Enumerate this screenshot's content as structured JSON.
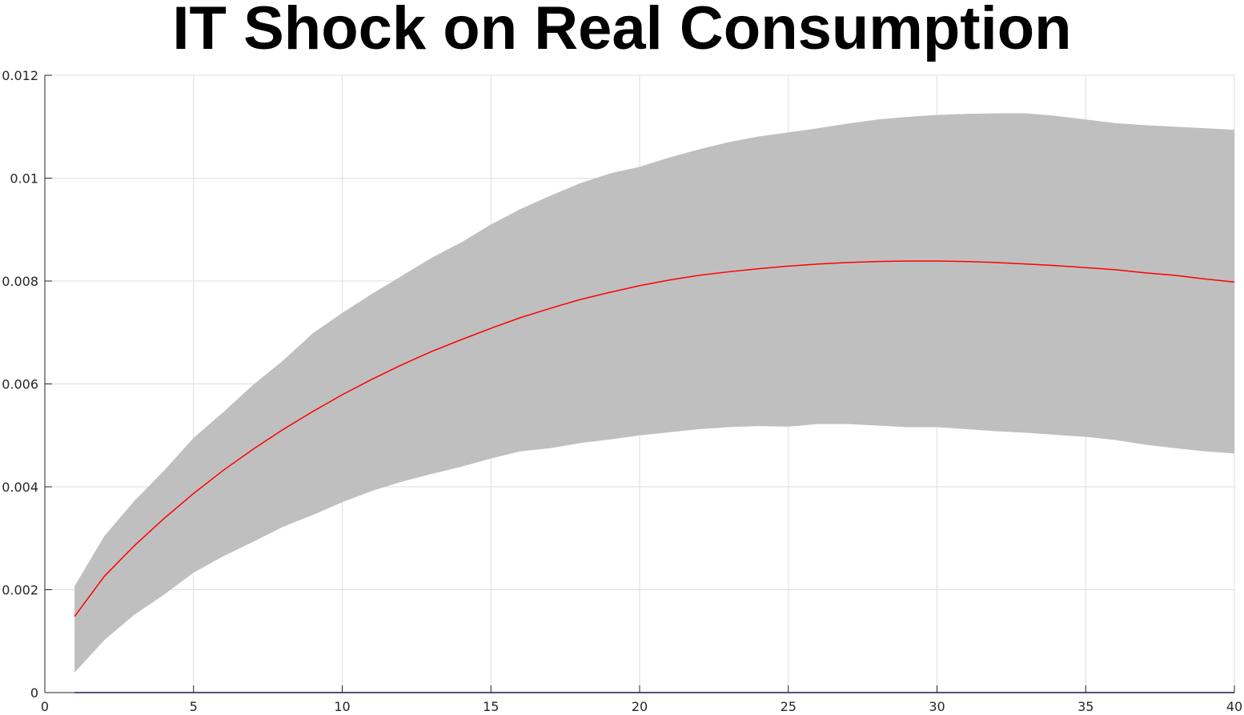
{
  "chart_data": {
    "type": "area",
    "title": "IT Shock on Real Consumption",
    "xlabel": "",
    "ylabel": "",
    "xlim": [
      0,
      40
    ],
    "ylim": [
      0,
      0.012
    ],
    "grid": true,
    "xticks": [
      0,
      5,
      10,
      15,
      20,
      25,
      30,
      35,
      40
    ],
    "yticks": [
      0,
      0.002,
      0.004,
      0.006,
      0.008,
      0.01,
      0.012
    ],
    "xtick_labels": [
      "0",
      "5",
      "10",
      "15",
      "20",
      "25",
      "30",
      "35",
      "40"
    ],
    "ytick_labels": [
      "0",
      "0.002",
      "0.004",
      "0.006",
      "0.008",
      "0.01",
      "0.012"
    ],
    "x": [
      1,
      2,
      3,
      4,
      5,
      6,
      7,
      8,
      9,
      10,
      11,
      12,
      13,
      14,
      15,
      16,
      17,
      18,
      19,
      20,
      21,
      22,
      23,
      24,
      25,
      26,
      27,
      28,
      29,
      30,
      31,
      32,
      33,
      34,
      35,
      36,
      37,
      38,
      39,
      40
    ],
    "band_upper": [
      0.00207,
      0.00304,
      0.00372,
      0.00431,
      0.00495,
      0.00545,
      0.00598,
      0.00645,
      0.00698,
      0.00738,
      0.00775,
      0.0081,
      0.00845,
      0.00875,
      0.0091,
      0.0094,
      0.00966,
      0.0099,
      0.01009,
      0.01022,
      0.0104,
      0.01056,
      0.0107,
      0.01081,
      0.01089,
      0.01097,
      0.01106,
      0.01114,
      0.01119,
      0.01123,
      0.01125,
      0.01126,
      0.01126,
      0.01121,
      0.01114,
      0.01107,
      0.01103,
      0.011,
      0.01097,
      0.01094
    ],
    "band_lower": [
      0.00039,
      0.00102,
      0.00151,
      0.0019,
      0.00233,
      0.00265,
      0.00293,
      0.00322,
      0.00345,
      0.0037,
      0.00392,
      0.0041,
      0.00425,
      0.00439,
      0.00455,
      0.00469,
      0.00475,
      0.00485,
      0.00492,
      0.005,
      0.00506,
      0.00512,
      0.00516,
      0.00518,
      0.00517,
      0.00522,
      0.00522,
      0.00519,
      0.00516,
      0.00516,
      0.00512,
      0.00508,
      0.00505,
      0.00501,
      0.00497,
      0.00491,
      0.00482,
      0.00475,
      0.00469,
      0.00465
    ],
    "median": [
      0.00148,
      0.00226,
      0.00285,
      0.00338,
      0.00387,
      0.00432,
      0.00473,
      0.00511,
      0.00546,
      0.00579,
      0.00609,
      0.00637,
      0.00663,
      0.00686,
      0.00708,
      0.00729,
      0.00747,
      0.00764,
      0.00778,
      0.00791,
      0.00802,
      0.00811,
      0.00818,
      0.00824,
      0.00829,
      0.00833,
      0.00836,
      0.00838,
      0.00839,
      0.00839,
      0.00838,
      0.00836,
      0.00833,
      0.0083,
      0.00826,
      0.00822,
      0.00816,
      0.00811,
      0.00804,
      0.00798
    ],
    "zero_line": 0,
    "colors": {
      "band": "#bfbfbf",
      "median": "#ff0000",
      "zero_line": "#0000aa",
      "grid": "#dedede",
      "axis": "#262626"
    }
  }
}
